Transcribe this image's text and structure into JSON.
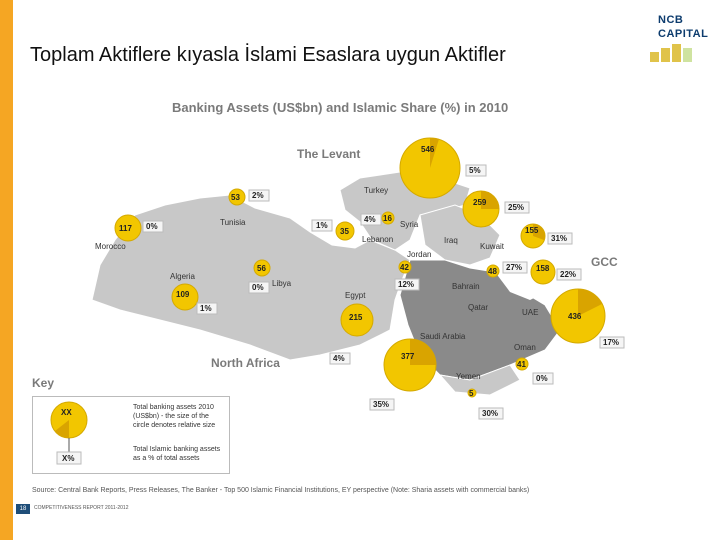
{
  "slide_title": "Toplam Aktiflere kıyasla İslami Esaslara uygun Aktifler",
  "logo": {
    "line1": "NCB",
    "line2": "CAPITAL"
  },
  "map_title": "Banking Assets (US$bn) and Islamic Share (%) in 2010",
  "regions": {
    "levant": "The Levant",
    "north_africa": "North Africa",
    "gcc": "GCC"
  },
  "countries": [
    {
      "name": "Turkey",
      "assets": "546",
      "share": "5%"
    },
    {
      "name": "Tunisia",
      "assets": "53",
      "share": "2%"
    },
    {
      "name": "Morocco",
      "assets": "117",
      "share": "0%"
    },
    {
      "name": "Algeria",
      "assets": "109",
      "share": "1%"
    },
    {
      "name": "Libya",
      "assets": "56",
      "share": "0%"
    },
    {
      "name": "Lebanon",
      "assets": "35",
      "share": "1%"
    },
    {
      "name": "Syria",
      "assets": "16",
      "share": "4%"
    },
    {
      "name": "Iraq",
      "assets": "259",
      "share": "25%"
    },
    {
      "name": "Jordan",
      "assets": "42",
      "share": "12%"
    },
    {
      "name": "Egypt",
      "assets": "215",
      "share": "4%"
    },
    {
      "name": "Kuwait",
      "assets": "155",
      "share": "31%"
    },
    {
      "name": "Bahrain",
      "assets": "48",
      "share": "27%"
    },
    {
      "name": "Qatar",
      "assets": "158",
      "share": "22%"
    },
    {
      "name": "UAE",
      "assets": "436",
      "share": "17%"
    },
    {
      "name": "Saudi Arabia",
      "assets": "377",
      "share": "35%"
    },
    {
      "name": "Oman",
      "assets": "41",
      "share": "0%"
    },
    {
      "name": "Yemen",
      "assets": "5",
      "share": "30%"
    }
  ],
  "key": {
    "title": "Key",
    "circle_label": "XX",
    "pct_label": "X%",
    "circle_desc": "Total banking assets 2010 (US$bn) - the size of the circle denotes relative size",
    "pct_desc": "Total Islamic banking assets as a % of total assets"
  },
  "source": "Source: Central Bank Reports, Press Releases, The Banker - Top 500 Islamic Financial Institutions, EY perspective (Note: Sharia assets with commercial banks)",
  "footer": {
    "page": "18",
    "text": "COMPETITIVENESS REPORT 2011-2012"
  },
  "colors": {
    "accent_bar": "#f5a623",
    "bubble": "#f2c600",
    "land": "#c8c8c8",
    "gcc_land": "#8a8a8a"
  }
}
